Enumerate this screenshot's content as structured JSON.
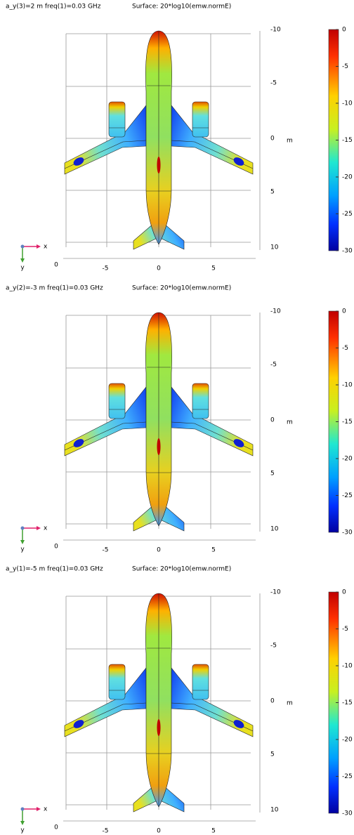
{
  "panels": [
    {
      "title": "a_y(3)=2 m freq(1)=0.03 GHz",
      "expression": "Surface: 20*log10(emw.normE)",
      "vertical_ticks": [
        "-10",
        "-5",
        "0",
        "5",
        "10"
      ],
      "horizontal_ticks": [
        "-5",
        "0",
        "5"
      ],
      "corner_label": "0",
      "unit": "m",
      "colorbar_ticks": [
        "0",
        "-5",
        "-10",
        "-15",
        "-20",
        "-25",
        "-30"
      ],
      "x_axis": "x",
      "y_axis": "y"
    },
    {
      "title": "a_y(2)=-3 m freq(1)=0.03 GHz",
      "expression": "Surface: 20*log10(emw.normE)",
      "vertical_ticks": [
        "-10",
        "-5",
        "0",
        "5",
        "10"
      ],
      "horizontal_ticks": [
        "-5",
        "0",
        "5"
      ],
      "corner_label": "0",
      "unit": "m",
      "colorbar_ticks": [
        "0",
        "-5",
        "-10",
        "-15",
        "-20",
        "-25",
        "-30"
      ],
      "x_axis": "x",
      "y_axis": "y"
    },
    {
      "title": "a_y(1)=-5 m freq(1)=0.03 GHz",
      "expression": "Surface: 20*log10(emw.normE)",
      "vertical_ticks": [
        "-10",
        "-5",
        "0",
        "5",
        "10"
      ],
      "horizontal_ticks": [
        "-5",
        "0",
        "5"
      ],
      "corner_label": "0",
      "unit": "m",
      "colorbar_ticks": [
        "0",
        "-5",
        "-10",
        "-15",
        "-20",
        "-25",
        "-30"
      ],
      "x_axis": "x",
      "y_axis": "y"
    }
  ]
}
